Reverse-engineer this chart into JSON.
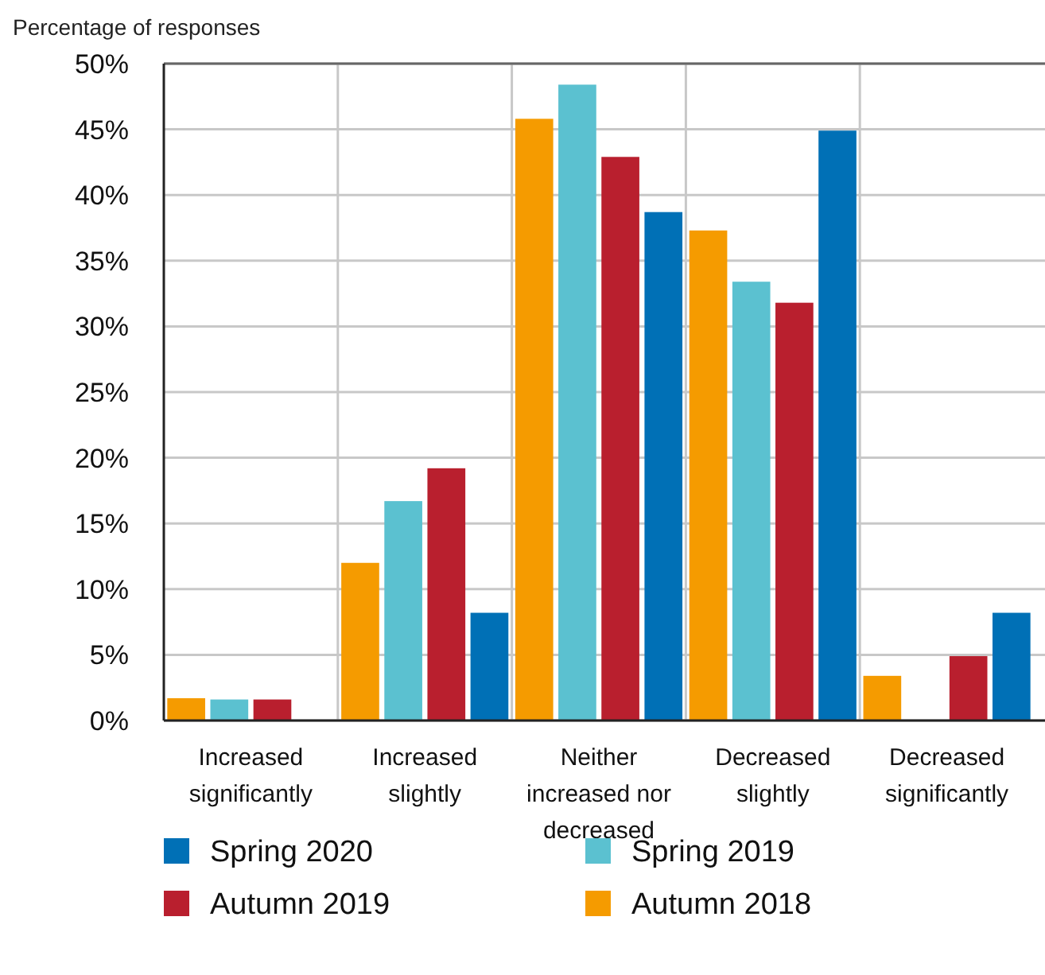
{
  "chart_data": {
    "type": "bar",
    "ylabel": "Percentage of responses",
    "categories": [
      "Increased significantly",
      "Increased slightly",
      "Neither increased nor decreased",
      "Decreased slightly",
      "Decreased significantly"
    ],
    "series": [
      {
        "name": "Autumn 2018",
        "color": "#f59b00",
        "values": [
          1.7,
          12.0,
          45.8,
          37.3,
          3.4
        ]
      },
      {
        "name": "Spring 2019",
        "color": "#5bc1d0",
        "values": [
          1.6,
          16.7,
          48.4,
          33.4,
          0
        ]
      },
      {
        "name": "Autumn 2019",
        "color": "#b91f2e",
        "values": [
          1.6,
          19.2,
          42.9,
          31.8,
          4.9
        ]
      },
      {
        "name": "Spring 2020",
        "color": "#0070b6",
        "values": [
          0,
          8.2,
          38.7,
          44.9,
          8.2
        ]
      }
    ],
    "ylim": [
      0,
      50
    ],
    "yticks": [
      {
        "value": 0,
        "label": "0%"
      },
      {
        "value": 5,
        "label": "5%"
      },
      {
        "value": 10,
        "label": "10%"
      },
      {
        "value": 15,
        "label": "15%"
      },
      {
        "value": 20,
        "label": "20%"
      },
      {
        "value": 25,
        "label": "25%"
      },
      {
        "value": 30,
        "label": "30%"
      },
      {
        "value": 35,
        "label": "35%"
      },
      {
        "value": 40,
        "label": "40%"
      },
      {
        "value": 45,
        "label": "45%"
      },
      {
        "value": 50,
        "label": "50%"
      }
    ],
    "grid": true,
    "legend": "bottom"
  }
}
